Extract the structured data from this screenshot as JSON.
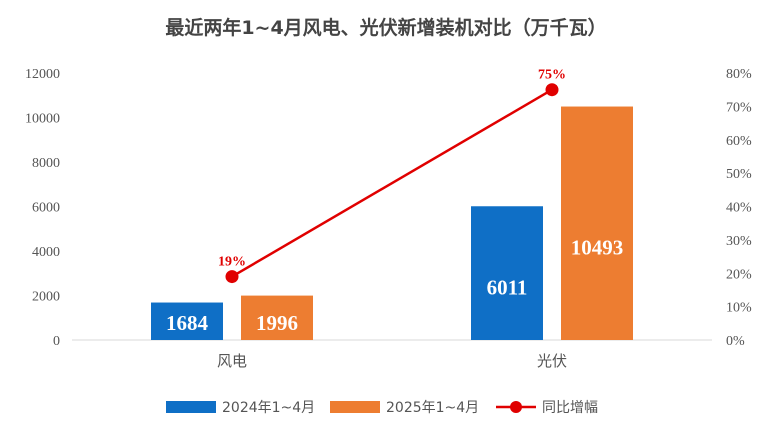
{
  "chart_data": {
    "type": "bar",
    "title": "最近两年1~4月风电、光伏新增装机对比（万千瓦）",
    "categories": [
      "风电",
      "光伏"
    ],
    "series": [
      {
        "name": "2024年1~4月",
        "type": "bar",
        "axis": "left",
        "color": "#0f6fc6",
        "values": [
          1684,
          6011
        ]
      },
      {
        "name": "2025年1~4月",
        "type": "bar",
        "axis": "left",
        "color": "#ed7d31",
        "values": [
          1996,
          10493
        ]
      },
      {
        "name": "同比增幅",
        "type": "line",
        "axis": "right",
        "color": "#e00000",
        "values": [
          19,
          75
        ],
        "labels": [
          "19%",
          "75%"
        ]
      }
    ],
    "ylim": [
      0,
      12000
    ],
    "y_ticks": [
      "0",
      "2000",
      "4000",
      "6000",
      "8000",
      "10000",
      "12000"
    ],
    "y2lim": [
      0,
      80
    ],
    "y2_ticks": [
      "0%",
      "10%",
      "20%",
      "30%",
      "40%",
      "50%",
      "60%",
      "70%",
      "80%"
    ],
    "legend_position": "bottom",
    "grid": false
  }
}
